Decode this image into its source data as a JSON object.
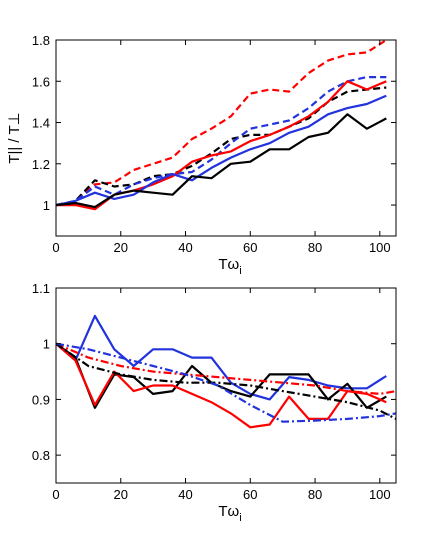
{
  "chart_data": [
    {
      "type": "line",
      "ylabel": "T|| / T⊥",
      "xlabel_main": "Tω",
      "xlabel_sub": "i",
      "xlim": [
        0,
        105
      ],
      "ylim": [
        0.85,
        1.8
      ],
      "xticks": [
        0,
        20,
        40,
        60,
        80,
        100
      ],
      "yticks": [
        1,
        1.2,
        1.4,
        1.6,
        1.8
      ],
      "grid": false,
      "series": [
        {
          "color": "#ff0000",
          "style": "dashed",
          "x": [
            0,
            6,
            12,
            18,
            24,
            30,
            36,
            42,
            48,
            54,
            60,
            66,
            72,
            78,
            84,
            90,
            96,
            102
          ],
          "y": [
            1.0,
            1.02,
            1.1,
            1.11,
            1.17,
            1.2,
            1.23,
            1.32,
            1.37,
            1.43,
            1.54,
            1.56,
            1.55,
            1.64,
            1.7,
            1.73,
            1.74,
            1.8
          ]
        },
        {
          "color": "#000000",
          "style": "dashed",
          "x": [
            0,
            6,
            12,
            18,
            24,
            30,
            36,
            42,
            48,
            54,
            60,
            66,
            72,
            78,
            84,
            90,
            96,
            102
          ],
          "y": [
            1.0,
            1.02,
            1.12,
            1.09,
            1.1,
            1.14,
            1.15,
            1.19,
            1.25,
            1.32,
            1.34,
            1.34,
            1.38,
            1.42,
            1.5,
            1.55,
            1.56,
            1.57
          ]
        },
        {
          "color": "#2233dd",
          "style": "dashed",
          "x": [
            0,
            6,
            12,
            18,
            24,
            30,
            36,
            42,
            48,
            54,
            60,
            66,
            72,
            78,
            84,
            90,
            96,
            102
          ],
          "y": [
            1.0,
            1.02,
            1.09,
            1.05,
            1.1,
            1.13,
            1.15,
            1.16,
            1.22,
            1.3,
            1.37,
            1.39,
            1.41,
            1.47,
            1.55,
            1.6,
            1.62,
            1.62
          ]
        },
        {
          "color": "#ff0000",
          "style": "solid",
          "x": [
            0,
            6,
            12,
            18,
            24,
            30,
            36,
            42,
            48,
            54,
            60,
            66,
            72,
            78,
            84,
            90,
            96,
            102
          ],
          "y": [
            1.0,
            1.0,
            0.98,
            1.05,
            1.07,
            1.1,
            1.14,
            1.21,
            1.24,
            1.26,
            1.31,
            1.34,
            1.38,
            1.43,
            1.5,
            1.6,
            1.56,
            1.6
          ]
        },
        {
          "color": "#2233dd",
          "style": "solid",
          "x": [
            0,
            6,
            12,
            18,
            24,
            30,
            36,
            42,
            48,
            54,
            60,
            66,
            72,
            78,
            84,
            90,
            96,
            102
          ],
          "y": [
            1.0,
            1.02,
            1.06,
            1.03,
            1.05,
            1.11,
            1.15,
            1.12,
            1.18,
            1.23,
            1.27,
            1.3,
            1.35,
            1.38,
            1.44,
            1.47,
            1.49,
            1.53
          ]
        },
        {
          "color": "#000000",
          "style": "solid",
          "x": [
            0,
            6,
            12,
            18,
            24,
            30,
            36,
            42,
            48,
            54,
            60,
            66,
            72,
            78,
            84,
            90,
            96,
            102
          ],
          "y": [
            1.0,
            1.01,
            0.99,
            1.05,
            1.07,
            1.06,
            1.05,
            1.14,
            1.13,
            1.2,
            1.21,
            1.27,
            1.27,
            1.33,
            1.35,
            1.44,
            1.37,
            1.42
          ]
        }
      ]
    },
    {
      "type": "line",
      "xlabel_main": "Tω",
      "xlabel_sub": "i",
      "xlim": [
        0,
        105
      ],
      "ylim": [
        0.75,
        1.1
      ],
      "xticks": [
        0,
        20,
        40,
        60,
        80,
        100
      ],
      "yticks": [
        0.8,
        0.9,
        1,
        1.1
      ],
      "grid": false,
      "series": [
        {
          "color": "#2233dd",
          "style": "solid",
          "x": [
            0,
            6,
            12,
            18,
            24,
            30,
            36,
            42,
            48,
            54,
            60,
            66,
            72,
            78,
            84,
            90,
            96,
            102
          ],
          "y": [
            1.0,
            0.97,
            1.05,
            0.99,
            0.96,
            0.99,
            0.99,
            0.975,
            0.975,
            0.93,
            0.91,
            0.9,
            0.94,
            0.935,
            0.925,
            0.92,
            0.92,
            0.942
          ]
        },
        {
          "color": "#000000",
          "style": "solid",
          "x": [
            0,
            6,
            12,
            18,
            24,
            30,
            36,
            42,
            48,
            54,
            60,
            66,
            72,
            78,
            84,
            90,
            96,
            102
          ],
          "y": [
            1.0,
            0.975,
            0.885,
            0.945,
            0.94,
            0.91,
            0.915,
            0.96,
            0.93,
            0.915,
            0.905,
            0.945,
            0.945,
            0.945,
            0.9,
            0.928,
            0.885,
            0.905
          ]
        },
        {
          "color": "#ff0000",
          "style": "solid",
          "x": [
            0,
            6,
            12,
            18,
            24,
            30,
            36,
            42,
            48,
            54,
            60,
            66,
            72,
            78,
            84,
            90,
            96,
            102
          ],
          "y": [
            1.0,
            0.97,
            0.89,
            0.95,
            0.915,
            0.925,
            0.925,
            0.91,
            0.895,
            0.875,
            0.85,
            0.855,
            0.905,
            0.865,
            0.865,
            0.915,
            0.91,
            0.895
          ]
        },
        {
          "color": "#ff0000",
          "style": "dashdot",
          "x": [
            0,
            10,
            20,
            30,
            40,
            50,
            60,
            70,
            80,
            90,
            100,
            105
          ],
          "y": [
            1.0,
            0.975,
            0.96,
            0.95,
            0.945,
            0.94,
            0.935,
            0.93,
            0.925,
            0.915,
            0.91,
            0.915
          ]
        },
        {
          "color": "#000000",
          "style": "dashdot",
          "x": [
            0,
            10,
            20,
            30,
            40,
            50,
            60,
            70,
            80,
            90,
            100,
            105
          ],
          "y": [
            1.0,
            0.96,
            0.945,
            0.935,
            0.93,
            0.93,
            0.925,
            0.915,
            0.905,
            0.895,
            0.88,
            0.865
          ]
        },
        {
          "color": "#2233dd",
          "style": "dashdot",
          "x": [
            0,
            10,
            20,
            30,
            40,
            50,
            60,
            70,
            80,
            90,
            100,
            105
          ],
          "y": [
            1.0,
            0.99,
            0.975,
            0.96,
            0.945,
            0.925,
            0.89,
            0.86,
            0.862,
            0.865,
            0.87,
            0.875
          ]
        }
      ]
    }
  ]
}
